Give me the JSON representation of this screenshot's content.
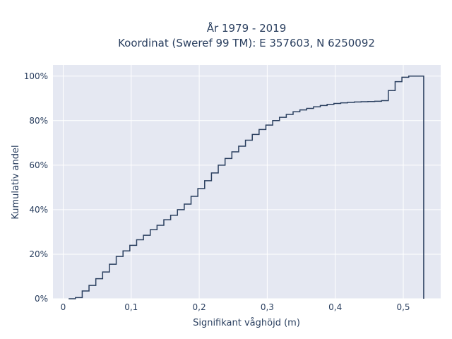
{
  "chart_data": {
    "type": "line",
    "line_shape": "step",
    "title_line1": "År 1979 - 2019",
    "title_line2": "Koordinat (Sweref 99 TM): E 357603, N 6250092",
    "xlabel": "Signifikant våghöjd (m)",
    "ylabel": "Kumulativ andel",
    "xlim": [
      -0.015,
      0.555
    ],
    "ylim": [
      0,
      1.05
    ],
    "x_ticks": [
      0,
      0.1,
      0.2,
      0.3,
      0.4,
      0.5
    ],
    "x_tick_labels": [
      "0",
      "0,1",
      "0,2",
      "0,3",
      "0,4",
      "0,5"
    ],
    "y_ticks": [
      0,
      0.2,
      0.4,
      0.6,
      0.8,
      1.0
    ],
    "y_tick_labels": [
      "0%",
      "20%",
      "40%",
      "60%",
      "80%",
      "100%"
    ],
    "grid": true,
    "colors": {
      "plot_bg": "#e5e8f2",
      "grid": "#ffffff",
      "line": "#2a3f5f",
      "text": "#2a3f5f"
    },
    "series": [
      {
        "x": [
          0.008,
          0.018,
          0.028,
          0.038,
          0.048,
          0.058,
          0.068,
          0.078,
          0.088,
          0.098,
          0.108,
          0.118,
          0.128,
          0.138,
          0.148,
          0.158,
          0.168,
          0.178,
          0.188,
          0.198,
          0.208,
          0.218,
          0.228,
          0.238,
          0.248,
          0.258,
          0.268,
          0.278,
          0.288,
          0.298,
          0.308,
          0.318,
          0.328,
          0.338,
          0.348,
          0.358,
          0.368,
          0.378,
          0.388,
          0.398,
          0.408,
          0.418,
          0.428,
          0.438,
          0.448,
          0.458,
          0.468,
          0.478,
          0.488,
          0.498,
          0.508,
          0.53
        ],
        "y": [
          0.0,
          0.005,
          0.035,
          0.06,
          0.09,
          0.12,
          0.155,
          0.19,
          0.215,
          0.24,
          0.265,
          0.285,
          0.31,
          0.33,
          0.355,
          0.375,
          0.4,
          0.425,
          0.46,
          0.495,
          0.53,
          0.565,
          0.6,
          0.63,
          0.66,
          0.685,
          0.712,
          0.738,
          0.76,
          0.78,
          0.8,
          0.815,
          0.828,
          0.84,
          0.848,
          0.855,
          0.862,
          0.868,
          0.873,
          0.877,
          0.88,
          0.882,
          0.884,
          0.885,
          0.886,
          0.887,
          0.89,
          0.935,
          0.975,
          0.995,
          1.0,
          1.0
        ]
      }
    ]
  }
}
